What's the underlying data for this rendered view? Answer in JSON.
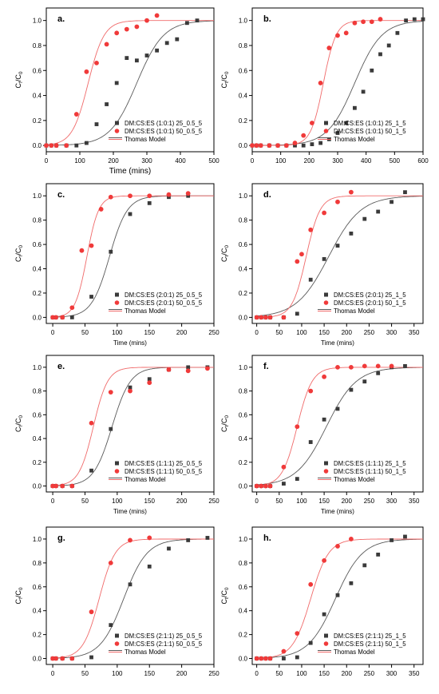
{
  "colors": {
    "series1": "#3a3a3a",
    "series2": "#f03a3a",
    "model1": "#5a5a5a",
    "model2": "#f06a6a",
    "axis": "#000000"
  },
  "chart_data": [
    {
      "panel_label": "a.",
      "type": "scatter",
      "xlabel": "Time (mins)",
      "ylabel_main": "C",
      "ylabel_sub1": "f",
      "ylabel_mid": "/C",
      "ylabel_sub2": "0",
      "xlim": [
        0,
        500
      ],
      "ylim": [
        -0.05,
        1.1
      ],
      "xticks": [
        0,
        100,
        200,
        300,
        400,
        500
      ],
      "yticks": [
        0.0,
        0.2,
        0.4,
        0.6,
        0.8,
        1.0
      ],
      "series": [
        {
          "name": "DM:CS:ES (1:0:1) 25_0.5_5",
          "marker": "square",
          "x": [
            0,
            15,
            30,
            60,
            90,
            120,
            150,
            180,
            210,
            240,
            270,
            300,
            330,
            360,
            390,
            420,
            450
          ],
          "y": [
            0,
            0,
            0,
            0,
            0,
            0.02,
            0.17,
            0.33,
            0.5,
            0.7,
            0.68,
            0.72,
            0.76,
            0.82,
            0.85,
            0.98,
            1.0
          ]
        },
        {
          "name": "DM:CS:ES (1:0:1) 50_0.5_5",
          "marker": "circle",
          "x": [
            0,
            15,
            30,
            60,
            90,
            120,
            150,
            180,
            210,
            240,
            270,
            300,
            330
          ],
          "y": [
            0,
            0,
            0,
            0,
            0.25,
            0.59,
            0.66,
            0.81,
            0.9,
            0.93,
            0.95,
            1.0,
            1.04
          ]
        }
      ],
      "model": {
        "name": "Thomas Model",
        "curves": [
          {
            "t50": 270,
            "k": 0.025
          },
          {
            "t50": 125,
            "k": 0.042
          }
        ]
      }
    },
    {
      "panel_label": "b.",
      "type": "scatter",
      "xlabel": "",
      "ylabel_main": "C",
      "ylabel_sub1": "t",
      "ylabel_mid": "/C",
      "ylabel_sub2": "0",
      "xlim": [
        0,
        600
      ],
      "ylim": [
        -0.05,
        1.1
      ],
      "xticks": [
        0,
        100,
        200,
        300,
        400,
        500,
        600
      ],
      "yticks": [
        0.0,
        0.2,
        0.4,
        0.6,
        0.8,
        1.0
      ],
      "series": [
        {
          "name": "DM:CS:ES (1:0:1) 25_1_5",
          "marker": "square",
          "x": [
            0,
            15,
            30,
            60,
            90,
            120,
            150,
            180,
            210,
            240,
            270,
            300,
            330,
            360,
            390,
            420,
            450,
            480,
            510,
            540,
            570,
            600
          ],
          "y": [
            0,
            0,
            0,
            0,
            0,
            0,
            0,
            0,
            0.01,
            0.02,
            0.05,
            0.1,
            0.18,
            0.3,
            0.43,
            0.6,
            0.73,
            0.8,
            0.9,
            1.0,
            1.01,
            1.01
          ]
        },
        {
          "name": "DM:CS:ES (1:0:1) 50_1_5",
          "marker": "circle",
          "x": [
            0,
            15,
            30,
            60,
            90,
            120,
            150,
            180,
            210,
            240,
            270,
            300,
            330,
            360,
            390,
            420,
            450
          ],
          "y": [
            0,
            0,
            0,
            0,
            0,
            0,
            0.02,
            0.08,
            0.18,
            0.5,
            0.78,
            0.88,
            0.9,
            0.98,
            0.99,
            0.99,
            1.01
          ]
        }
      ],
      "model": {
        "name": "Thomas Model",
        "curves": [
          {
            "t50": 360,
            "k": 0.021
          },
          {
            "t50": 250,
            "k": 0.045
          }
        ]
      }
    },
    {
      "panel_label": "c.",
      "type": "scatter",
      "xlabel": "Time (mins)",
      "ylabel_main": "C",
      "ylabel_sub1": "f",
      "ylabel_mid": "/C",
      "ylabel_sub2": "0",
      "xlim": [
        -10,
        250
      ],
      "ylim": [
        -0.05,
        1.1
      ],
      "xticks": [
        0,
        50,
        100,
        150,
        200,
        250
      ],
      "yticks": [
        0.0,
        0.2,
        0.4,
        0.6,
        0.8,
        1.0
      ],
      "series": [
        {
          "name": "DM:CS:ES (2:0:1) 25_0.5_5",
          "marker": "square",
          "x": [
            0,
            5,
            15,
            30,
            60,
            90,
            120,
            150,
            180,
            210
          ],
          "y": [
            0,
            0,
            0,
            0,
            0.17,
            0.54,
            0.85,
            0.94,
            0.99,
            1.0
          ]
        },
        {
          "name": "DM:CS:ES (2:0:1) 50_0.5_5",
          "marker": "circle",
          "x": [
            0,
            5,
            15,
            30,
            45,
            60,
            75,
            90,
            120,
            150,
            180,
            210
          ],
          "y": [
            0,
            0,
            0,
            0.08,
            0.55,
            0.59,
            0.89,
            0.99,
            1.0,
            1.0,
            1.01,
            1.02
          ]
        }
      ],
      "model": {
        "name": "Thomas Model",
        "curves": [
          {
            "t50": 88,
            "k": 0.072
          },
          {
            "t50": 53,
            "k": 0.11
          }
        ]
      }
    },
    {
      "panel_label": "d.",
      "type": "scatter",
      "xlabel": "Time (mins)",
      "ylabel_main": "C",
      "ylabel_sub1": "t",
      "ylabel_mid": "/C",
      "ylabel_sub2": "0",
      "xlim": [
        -10,
        370
      ],
      "ylim": [
        -0.05,
        1.1
      ],
      "xticks": [
        0,
        50,
        100,
        150,
        200,
        250,
        300,
        350
      ],
      "yticks": [
        0.0,
        0.2,
        0.4,
        0.6,
        0.8,
        1.0
      ],
      "series": [
        {
          "name": "DM:CS:ES (2:0:1) 25_1_5",
          "marker": "square",
          "x": [
            0,
            10,
            20,
            30,
            60,
            90,
            120,
            150,
            180,
            210,
            240,
            270,
            300,
            330
          ],
          "y": [
            0,
            0,
            0,
            0,
            0,
            0.03,
            0.31,
            0.48,
            0.59,
            0.69,
            0.81,
            0.87,
            0.95,
            1.03
          ]
        },
        {
          "name": "DM:CS:ES (2:0:1) 50_1_5",
          "marker": "circle",
          "x": [
            0,
            10,
            20,
            30,
            60,
            90,
            100,
            120,
            150,
            180,
            210
          ],
          "y": [
            0,
            0,
            0,
            0,
            0,
            0.46,
            0.52,
            0.72,
            0.86,
            0.95,
            1.03
          ]
        }
      ],
      "model": {
        "name": "Thomas Model",
        "curves": [
          {
            "t50": 160,
            "k": 0.028
          },
          {
            "t50": 110,
            "k": 0.065
          }
        ]
      }
    },
    {
      "panel_label": "e.",
      "type": "scatter",
      "xlabel": "Time (mins)",
      "ylabel_main": "C",
      "ylabel_sub1": "f",
      "ylabel_mid": "/C",
      "ylabel_sub2": "0",
      "xlim": [
        -10,
        250
      ],
      "ylim": [
        -0.05,
        1.1
      ],
      "xticks": [
        0,
        50,
        100,
        150,
        200,
        250
      ],
      "yticks": [
        0.0,
        0.2,
        0.4,
        0.6,
        0.8,
        1.0
      ],
      "series": [
        {
          "name": "DM:CS:ES (1:1:1) 25_0.5_5",
          "marker": "square",
          "x": [
            0,
            5,
            15,
            30,
            60,
            90,
            120,
            150,
            180,
            210,
            240
          ],
          "y": [
            0,
            0,
            0,
            0,
            0.13,
            0.48,
            0.83,
            0.9,
            0.98,
            1.0,
            1.0
          ]
        },
        {
          "name": "DM:CS:ES (1:1:1) 50_0.5_5",
          "marker": "circle",
          "x": [
            0,
            5,
            15,
            30,
            60,
            90,
            120,
            150,
            180,
            210,
            240
          ],
          "y": [
            0,
            0,
            0,
            0,
            0.53,
            0.79,
            0.8,
            0.87,
            0.98,
            0.97,
            0.99
          ]
        }
      ],
      "model": {
        "name": "Thomas Model",
        "curves": [
          {
            "t50": 92,
            "k": 0.07
          },
          {
            "t50": 63,
            "k": 0.09
          }
        ]
      }
    },
    {
      "panel_label": "f.",
      "type": "scatter",
      "xlabel": "Time (mins)",
      "ylabel_main": "C",
      "ylabel_sub1": "t",
      "ylabel_mid": "/C",
      "ylabel_sub2": "0",
      "xlim": [
        -10,
        370
      ],
      "ylim": [
        -0.05,
        1.1
      ],
      "xticks": [
        0,
        50,
        100,
        150,
        200,
        250,
        300,
        350
      ],
      "yticks": [
        0.0,
        0.2,
        0.4,
        0.6,
        0.8,
        1.0
      ],
      "series": [
        {
          "name": "DM:CS:ES (1:1:1) 25_1_5",
          "marker": "square",
          "x": [
            0,
            10,
            20,
            30,
            60,
            90,
            120,
            150,
            180,
            210,
            240,
            270,
            300,
            330
          ],
          "y": [
            0,
            0,
            0,
            0,
            0.02,
            0.06,
            0.37,
            0.56,
            0.65,
            0.81,
            0.88,
            0.95,
            1.0,
            1.01
          ]
        },
        {
          "name": "DM:CS:ES (1:1:1) 50_1_5",
          "marker": "circle",
          "x": [
            0,
            10,
            20,
            30,
            60,
            90,
            120,
            150,
            180,
            210,
            240,
            270,
            300
          ],
          "y": [
            0,
            0,
            0,
            0,
            0.16,
            0.5,
            0.8,
            0.92,
            1.0,
            1.0,
            1.01,
            1.01,
            1.01
          ]
        }
      ],
      "model": {
        "name": "Thomas Model",
        "curves": [
          {
            "t50": 155,
            "k": 0.03
          },
          {
            "t50": 90,
            "k": 0.06
          }
        ]
      }
    },
    {
      "panel_label": "g.",
      "type": "scatter",
      "xlabel": "",
      "ylabel_main": "C",
      "ylabel_sub1": "f",
      "ylabel_mid": "/C",
      "ylabel_sub2": "0",
      "xlim": [
        -10,
        250
      ],
      "ylim": [
        -0.05,
        1.1
      ],
      "xticks": [
        0,
        50,
        100,
        150,
        200,
        250
      ],
      "yticks": [
        0.0,
        0.2,
        0.4,
        0.6,
        0.8,
        1.0
      ],
      "series": [
        {
          "name": "DM:CS:ES (2:1:1) 25_0.5_5",
          "marker": "square",
          "x": [
            0,
            5,
            15,
            30,
            60,
            90,
            120,
            150,
            180,
            210,
            240
          ],
          "y": [
            0,
            0,
            0,
            0,
            0.01,
            0.28,
            0.62,
            0.77,
            0.92,
            0.99,
            1.01
          ]
        },
        {
          "name": "DM:CS:ES (2:1:1) 50_0.5_5",
          "marker": "circle",
          "x": [
            0,
            5,
            15,
            30,
            60,
            90,
            120,
            150
          ],
          "y": [
            0,
            0,
            0,
            0,
            0.39,
            0.8,
            0.99,
            1.01
          ]
        }
      ],
      "model": {
        "name": "Thomas Model",
        "curves": [
          {
            "t50": 110,
            "k": 0.055
          },
          {
            "t50": 72,
            "k": 0.08
          }
        ]
      }
    },
    {
      "panel_label": "h.",
      "type": "scatter",
      "xlabel": "",
      "ylabel_main": "C",
      "ylabel_sub1": "t",
      "ylabel_mid": "/C",
      "ylabel_sub2": "0",
      "xlim": [
        -10,
        370
      ],
      "ylim": [
        -0.05,
        1.1
      ],
      "xticks": [
        0,
        50,
        100,
        150,
        200,
        250,
        300,
        350
      ],
      "yticks": [
        0.0,
        0.2,
        0.4,
        0.6,
        0.8,
        1.0
      ],
      "series": [
        {
          "name": "DM:CS:ES (2:1:1) 25_1_5",
          "marker": "square",
          "x": [
            0,
            10,
            20,
            30,
            60,
            90,
            120,
            150,
            180,
            210,
            240,
            270,
            300,
            330
          ],
          "y": [
            0,
            0,
            0,
            0,
            0,
            0.01,
            0.13,
            0.37,
            0.53,
            0.63,
            0.78,
            0.87,
            0.99,
            1.02
          ]
        },
        {
          "name": "DM:CS:ES (2:1:1) 50_1_5",
          "marker": "circle",
          "x": [
            0,
            10,
            20,
            30,
            60,
            90,
            120,
            150,
            180,
            210
          ],
          "y": [
            0,
            0,
            0,
            0,
            0.06,
            0.21,
            0.62,
            0.82,
            0.94,
            1.0
          ]
        }
      ],
      "model": {
        "name": "Thomas Model",
        "curves": [
          {
            "t50": 175,
            "k": 0.033
          },
          {
            "t50": 120,
            "k": 0.05
          }
        ]
      }
    }
  ]
}
